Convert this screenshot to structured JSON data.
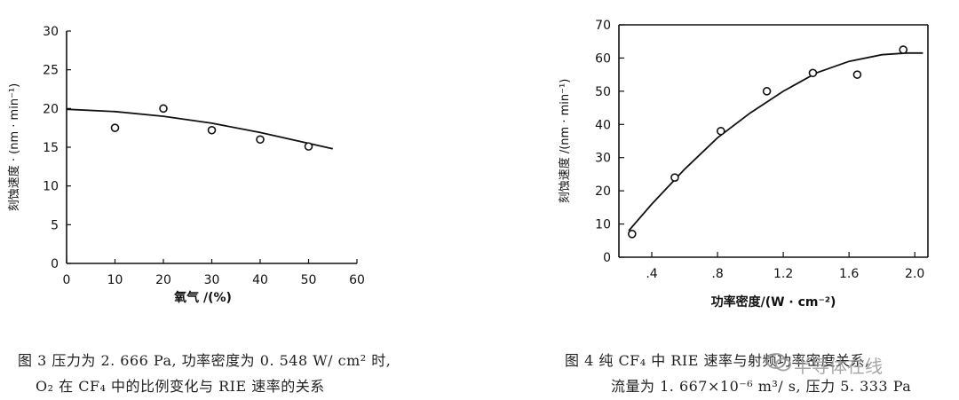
{
  "chart_data": [
    {
      "type": "scatter",
      "title": "",
      "xlabel": "氧气 /(%)",
      "ylabel": "刻蚀速度 · (nm · min⁻¹)",
      "x_ticks": [
        "0",
        "10",
        "20",
        "30",
        "40",
        "50",
        "60"
      ],
      "y_ticks": [
        "0",
        "5",
        "10",
        "15",
        "20",
        "25",
        "30"
      ],
      "xlim": [
        0,
        60
      ],
      "ylim": [
        0,
        30
      ],
      "grid": false,
      "points": [
        {
          "x": 10,
          "y": 17.5
        },
        {
          "x": 20,
          "y": 20
        },
        {
          "x": 30,
          "y": 17.2
        },
        {
          "x": 40,
          "y": 16
        },
        {
          "x": 50,
          "y": 15.1
        }
      ],
      "fit_curve": [
        [
          0,
          19.9
        ],
        [
          10,
          19.6
        ],
        [
          20,
          19.0
        ],
        [
          30,
          18.1
        ],
        [
          40,
          16.9
        ],
        [
          50,
          15.5
        ],
        [
          55,
          14.8
        ]
      ],
      "caption": [
        "图 3   压力为 2. 666 Pa, 功率密度为 0. 548 W/ cm² 时,",
        "O₂ 在 CF₄ 中的比例变化与 RIE 速率的关系"
      ]
    },
    {
      "type": "scatter",
      "title": "",
      "xlabel": "功率密度/(W · cm⁻²)",
      "ylabel": "刻蚀速度 /(nm · min⁻¹)",
      "x_ticks": [
        ".4",
        ".8",
        "1.2",
        "1.6",
        "2.0"
      ],
      "y_ticks": [
        "0",
        "10",
        "20",
        "30",
        "40",
        "50",
        "60",
        "70"
      ],
      "xlim": [
        0.2,
        2.08
      ],
      "ylim": [
        0,
        70
      ],
      "grid": false,
      "points": [
        {
          "x": 0.28,
          "y": 7
        },
        {
          "x": 0.54,
          "y": 24
        },
        {
          "x": 0.82,
          "y": 38
        },
        {
          "x": 1.1,
          "y": 50
        },
        {
          "x": 1.38,
          "y": 55.5
        },
        {
          "x": 1.65,
          "y": 55
        },
        {
          "x": 1.93,
          "y": 62.5
        }
      ],
      "fit_curve": [
        [
          0.26,
          8
        ],
        [
          0.4,
          16
        ],
        [
          0.6,
          26.5
        ],
        [
          0.8,
          36
        ],
        [
          1.0,
          43.5
        ],
        [
          1.2,
          50
        ],
        [
          1.4,
          55.5
        ],
        [
          1.6,
          59
        ],
        [
          1.8,
          61
        ],
        [
          1.95,
          61.5
        ],
        [
          2.05,
          61.5
        ]
      ],
      "caption": [
        "图 4   纯 CF₄ 中 RIE 速率与射频功率密度关系,",
        "流量为 1. 667×10⁻⁶ m³/ s, 压力 5. 333 Pa"
      ]
    }
  ],
  "watermark": "半导体在线"
}
